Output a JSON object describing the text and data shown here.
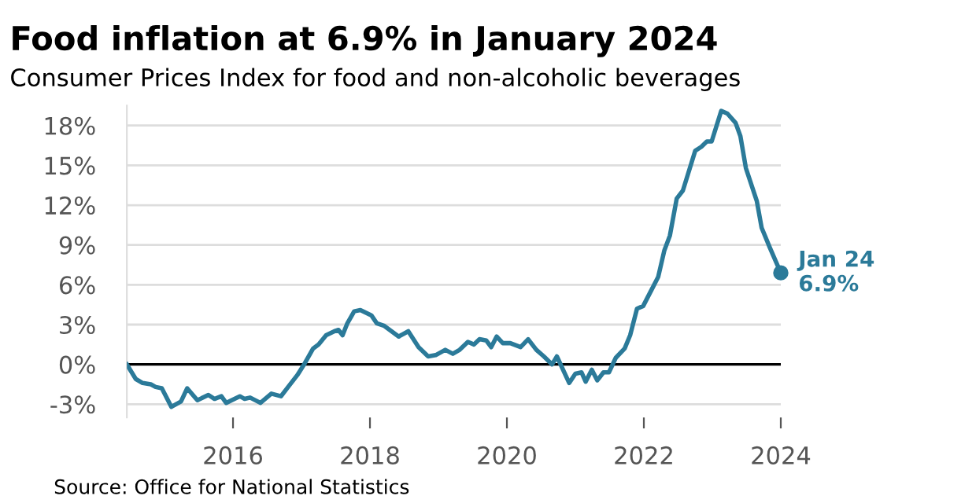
{
  "chart_data": {
    "type": "line",
    "title": "Food inflation at 6.9% in January 2024",
    "subtitle": "Consumer Prices Index for food and non-alcoholic beverages",
    "series": [
      {
        "color": "#2b7a99",
        "x": [
          2014.45,
          2014.58,
          2014.68,
          2014.8,
          2014.87,
          2014.96,
          2015.1,
          2015.24,
          2015.33,
          2015.48,
          2015.64,
          2015.73,
          2015.83,
          2015.9,
          2016.1,
          2016.17,
          2016.25,
          2016.4,
          2016.56,
          2016.7,
          2016.82,
          2016.94,
          2017.05,
          2017.17,
          2017.25,
          2017.36,
          2017.48,
          2017.54,
          2017.6,
          2017.67,
          2017.77,
          2017.86,
          2018.02,
          2018.1,
          2018.21,
          2018.42,
          2018.56,
          2018.71,
          2018.85,
          2018.96,
          2019.1,
          2019.21,
          2019.31,
          2019.43,
          2019.52,
          2019.6,
          2019.7,
          2019.77,
          2019.85,
          2019.94,
          2020.05,
          2020.2,
          2020.31,
          2020.43,
          2020.54,
          2020.66,
          2020.73,
          2020.91,
          2021.0,
          2021.09,
          2021.15,
          2021.24,
          2021.32,
          2021.41,
          2021.49,
          2021.59,
          2021.72,
          2021.8,
          2021.9,
          2021.99,
          2022.11,
          2022.21,
          2022.3,
          2022.38,
          2022.48,
          2022.57,
          2022.75,
          2022.84,
          2022.92,
          2022.99,
          2023.13,
          2023.22,
          2023.34,
          2023.41,
          2023.49,
          2023.65,
          2023.72,
          2023.84,
          2024.0
        ],
        "values": [
          0,
          -1.1,
          -1.4,
          -1.5,
          -1.7,
          -1.8,
          -3.2,
          -2.8,
          -1.8,
          -2.7,
          -2.3,
          -2.6,
          -2.4,
          -2.9,
          -2.4,
          -2.6,
          -2.5,
          -2.9,
          -2.2,
          -2.4,
          -1.6,
          -0.8,
          0.1,
          1.2,
          1.5,
          2.2,
          2.5,
          2.6,
          2.2,
          3.1,
          4.0,
          4.1,
          3.7,
          3.1,
          2.9,
          2.1,
          2.5,
          1.3,
          0.6,
          0.7,
          1.1,
          0.8,
          1.1,
          1.7,
          1.5,
          1.9,
          1.8,
          1.3,
          2.1,
          1.6,
          1.6,
          1.3,
          1.9,
          1.1,
          0.6,
          0.0,
          0.6,
          -1.4,
          -0.7,
          -0.6,
          -1.3,
          -0.4,
          -1.2,
          -0.6,
          -0.6,
          0.5,
          1.2,
          2.2,
          4.2,
          4.4,
          5.6,
          6.6,
          8.6,
          9.7,
          12.5,
          13.1,
          16.1,
          16.4,
          16.8,
          16.8,
          19.1,
          18.9,
          18.2,
          17.2,
          14.8,
          12.3,
          10.3,
          8.8,
          6.9
        ]
      }
    ],
    "xlim": [
      2014.45,
      2024.0
    ],
    "xticks": [
      2016,
      2018,
      2020,
      2022,
      2024
    ],
    "ylim": [
      -4,
      19.5
    ],
    "yticks": [
      {
        "value": -3,
        "label": "-3%"
      },
      {
        "value": 0,
        "label": "0%"
      },
      {
        "value": 3,
        "label": "3%"
      },
      {
        "value": 6,
        "label": "6%"
      },
      {
        "value": 9,
        "label": "9%"
      },
      {
        "value": 12,
        "label": "12%"
      },
      {
        "value": 15,
        "label": "15%"
      },
      {
        "value": 18,
        "label": "18%"
      }
    ],
    "grid": "y",
    "marker": "none",
    "line_style": "solid",
    "ref_lines": [
      {
        "axis": "y",
        "value": 0,
        "color": "#000000"
      }
    ],
    "annotations": [
      {
        "text": "Jan 24\n6.9%",
        "x": 2024.0,
        "y": 6.9
      },
      "Source: Office for National Statistics"
    ]
  }
}
